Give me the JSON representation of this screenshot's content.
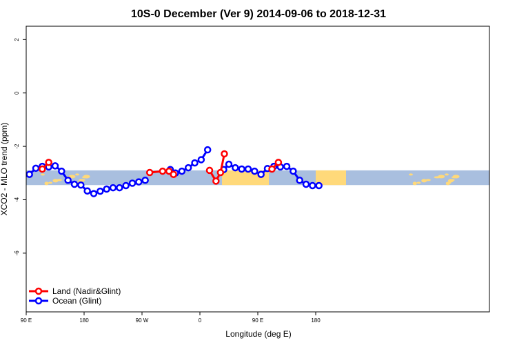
{
  "chart_data": {
    "type": "line",
    "title": "10S-0 December (Ver 9)   2014-09-06 to 2018-12-31",
    "xlabel": "Longitude (deg E)",
    "ylabel": "XCO2 - MLO trend (ppm)",
    "xlim": [
      90,
      450
    ],
    "ylim": [
      -8.2,
      2.5
    ],
    "x_ticks": [
      {
        "value": 90,
        "label": "90 E"
      },
      {
        "value": 180,
        "label": "180"
      },
      {
        "value": 270,
        "label": "90 W"
      },
      {
        "value": 360,
        "label": "0"
      },
      {
        "value": 450,
        "label": "90 E"
      },
      {
        "value": 540,
        "label": "180"
      }
    ],
    "y_ticks": [
      {
        "value": 2,
        "label": "2"
      },
      {
        "value": 0,
        "label": "0"
      },
      {
        "value": -2,
        "label": "-2"
      },
      {
        "value": -4,
        "label": "-4"
      },
      {
        "value": -6,
        "label": "-6"
      }
    ],
    "grid": false,
    "legend_position": "bottom-left",
    "background_band": {
      "ymin": -3.45,
      "ymax": -2.9
    },
    "series": [
      {
        "name": "Land (Nadir&Glint)",
        "color": "#ff0000",
        "segments": [
          {
            "x": [
              115,
              125
            ],
            "y": [
              -2.85,
              -2.6
            ]
          },
          {
            "x": [
              282,
              302,
              312,
              319
            ],
            "y": [
              -2.98,
              -2.93,
              -2.93,
              -3.05
            ]
          },
          {
            "x": [
              375,
              385,
              392,
              398
            ],
            "y": [
              -2.9,
              -3.3,
              -2.98,
              -2.28
            ]
          },
          {
            "x": [
              472,
              482
            ],
            "y": [
              -2.85,
              -2.6
            ]
          }
        ]
      },
      {
        "name": "Ocean (Glint)",
        "color": "#0000ff",
        "segments": [
          {
            "x": [
              95,
              105,
              115,
              125,
              135,
              145,
              155,
              165,
              175,
              185,
              195,
              205,
              215,
              225,
              235,
              245,
              255,
              265,
              275
            ],
            "y": [
              -3.05,
              -2.82,
              -2.75,
              -2.77,
              -2.73,
              -2.93,
              -3.27,
              -3.42,
              -3.45,
              -3.67,
              -3.77,
              -3.68,
              -3.6,
              -3.55,
              -3.55,
              -3.47,
              -3.38,
              -3.33,
              -3.27
            ]
          },
          {
            "x": [
              314,
              322,
              332,
              342,
              352,
              362,
              372
            ],
            "y": [
              -2.87,
              -3.0,
              -2.93,
              -2.8,
              -2.62,
              -2.5,
              -2.13
            ]
          },
          {
            "x": [
              397,
              405,
              415,
              425,
              435,
              445,
              455,
              465,
              475,
              485,
              495,
              505,
              515,
              525,
              535,
              545
            ],
            "y": [
              -2.87,
              -2.67,
              -2.8,
              -2.85,
              -2.85,
              -2.93,
              -3.05,
              -2.83,
              -2.75,
              -2.77,
              -2.75,
              -2.93,
              -3.27,
              -3.42,
              -3.47,
              -3.47
            ]
          }
        ]
      }
    ]
  }
}
